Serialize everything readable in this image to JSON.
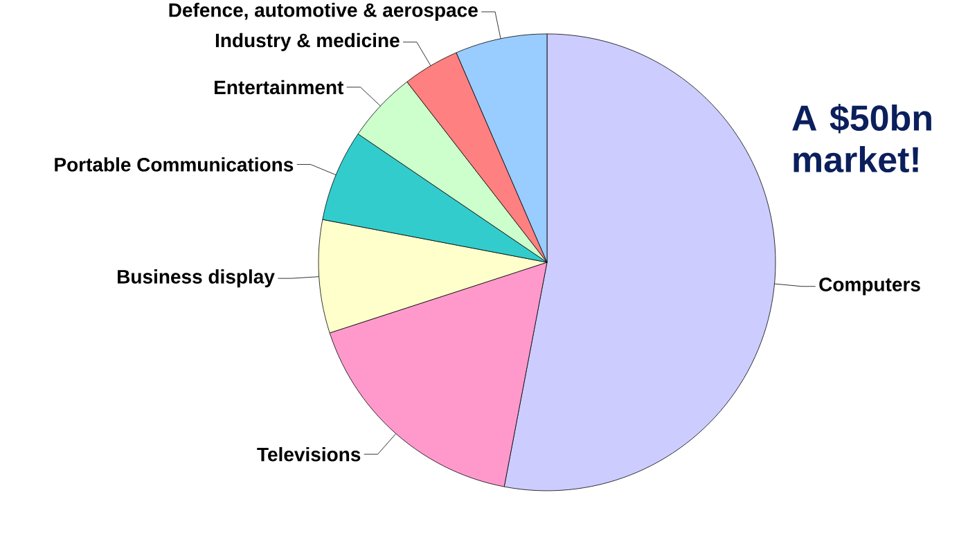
{
  "chart_data": {
    "type": "pie",
    "categories": [
      "Computers",
      "Televisions",
      "Business display",
      "Portable Communications",
      "Entertainment",
      "Industry & medicine",
      "Defence, automotive & aerospace"
    ],
    "values": [
      53,
      17,
      8,
      6.5,
      5,
      4,
      6.5
    ],
    "colors": [
      "#ccccff",
      "#ff99cc",
      "#ffffcc",
      "#33cccc",
      "#ccffcc",
      "#ff8080",
      "#99ccff"
    ],
    "annotations": [
      "A $50bn market!"
    ]
  }
}
